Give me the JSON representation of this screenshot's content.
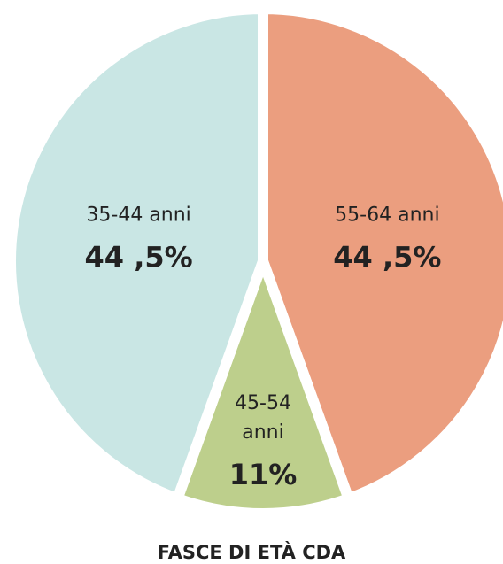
{
  "chart_data": {
    "type": "pie",
    "title": "FASCE DI ETÀ CDA",
    "categories": [
      "55-64 anni",
      "45-54 anni",
      "35-44 anni"
    ],
    "values": [
      44.5,
      11,
      44.5
    ],
    "value_labels": [
      "44 ,5%",
      "11%",
      "44 ,5%"
    ],
    "colors": [
      "#eb9e7f",
      "#bdcf8c",
      "#c9e6e4"
    ]
  }
}
